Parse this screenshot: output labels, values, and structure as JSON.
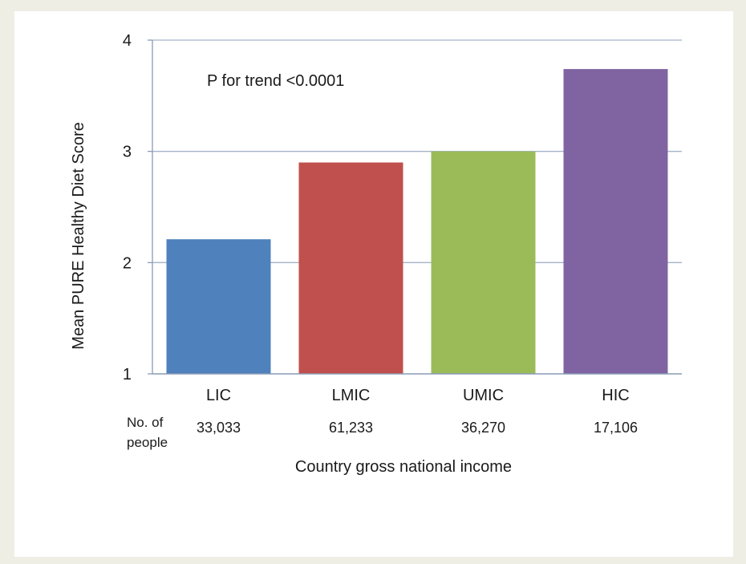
{
  "chart_data": {
    "type": "bar",
    "categories": [
      "LIC",
      "LMIC",
      "UMIC",
      "HIC"
    ],
    "values": [
      2.21,
      2.9,
      3.0,
      3.74
    ],
    "colors": [
      "#4f81bd",
      "#c0504d",
      "#9bbb59",
      "#8064a2"
    ],
    "ylabel": "Mean PURE Healthy Diet Score",
    "xlabel": "Country gross national income",
    "ylim": [
      1,
      4
    ],
    "yticks": [
      "1",
      "2",
      "3",
      "4"
    ],
    "annotation": "P for trend <0.0001",
    "row_label": [
      "No. of",
      "people"
    ],
    "counts": [
      "33,033",
      "61,233",
      "36,270",
      "17,106"
    ],
    "grid": true,
    "gridline_color": "#a5b3c8"
  }
}
